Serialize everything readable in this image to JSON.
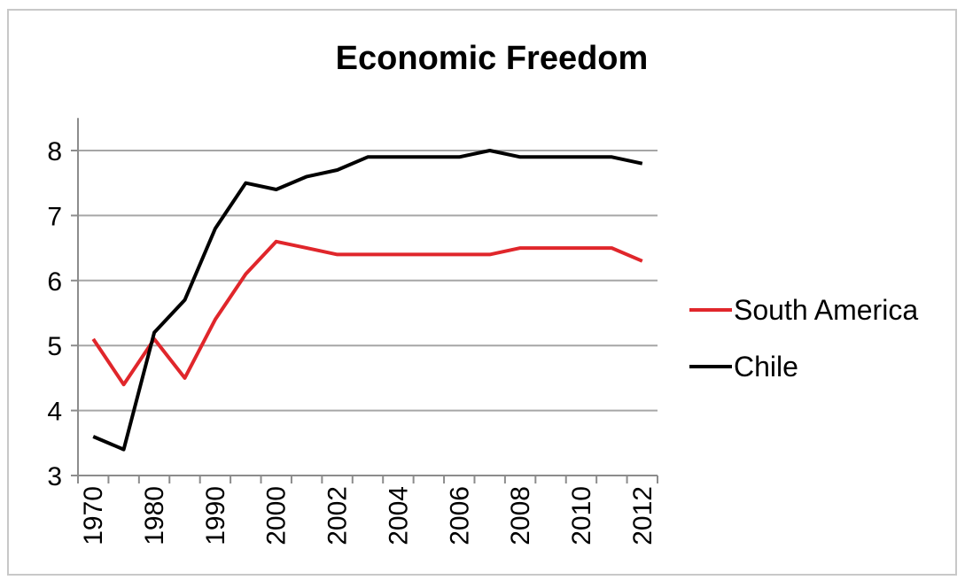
{
  "chart_data": {
    "type": "line",
    "title": "Economic Freedom",
    "xlabel": "",
    "ylabel": "",
    "ylim": [
      3,
      8.5
    ],
    "y_ticks": [
      3,
      4,
      5,
      6,
      7,
      8
    ],
    "grid": "horizontal",
    "legend_position": "right",
    "x_labels": [
      "1970",
      "1980",
      "1990",
      "2000",
      "2002",
      "2004",
      "2006",
      "2008",
      "2010",
      "2012"
    ],
    "x_label_every": 2,
    "x_points": 19,
    "series": [
      {
        "name": "South America",
        "color": "#e0262b",
        "values": [
          5.1,
          4.4,
          5.1,
          4.5,
          5.4,
          6.1,
          6.6,
          6.5,
          6.4,
          6.4,
          6.4,
          6.4,
          6.4,
          6.4,
          6.5,
          6.5,
          6.5,
          6.5,
          6.3
        ]
      },
      {
        "name": "Chile",
        "color": "#000000",
        "values": [
          3.6,
          3.4,
          5.2,
          5.7,
          6.8,
          7.5,
          7.4,
          7.6,
          7.7,
          7.9,
          7.9,
          7.9,
          7.9,
          8.0,
          7.9,
          7.9,
          7.9,
          7.9,
          7.8
        ]
      }
    ]
  }
}
